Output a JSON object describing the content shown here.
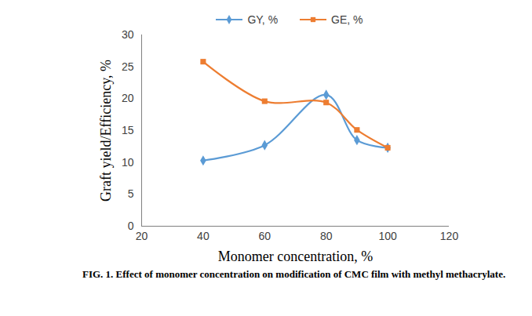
{
  "chart_data": {
    "type": "line",
    "caption": "FIG. 1. Effect of monomer concentration on modification of CMC film with methyl methacrylate.",
    "x_label": "Monomer concentration, %",
    "y_label": "Graft yield/Efficiency, %",
    "x": [
      40,
      60,
      80,
      90,
      100
    ],
    "series": [
      {
        "name": "GY, %",
        "color": "#5b9bd5",
        "marker": "diamond",
        "line_style": "solid",
        "values": [
          10.3,
          12.7,
          20.6,
          13.5,
          12.3
        ]
      },
      {
        "name": "GE, %",
        "color": "#ed7d31",
        "marker": "square",
        "line_style": "solid",
        "values": [
          25.8,
          19.6,
          19.4,
          15.1,
          12.3
        ]
      }
    ],
    "xlim": [
      20,
      120
    ],
    "xticks": [
      20,
      40,
      60,
      80,
      100,
      120
    ],
    "ylim": [
      0,
      30
    ],
    "yticks": [
      0,
      5,
      10,
      15,
      20,
      25,
      30
    ],
    "grid": false,
    "legend": "top"
  }
}
